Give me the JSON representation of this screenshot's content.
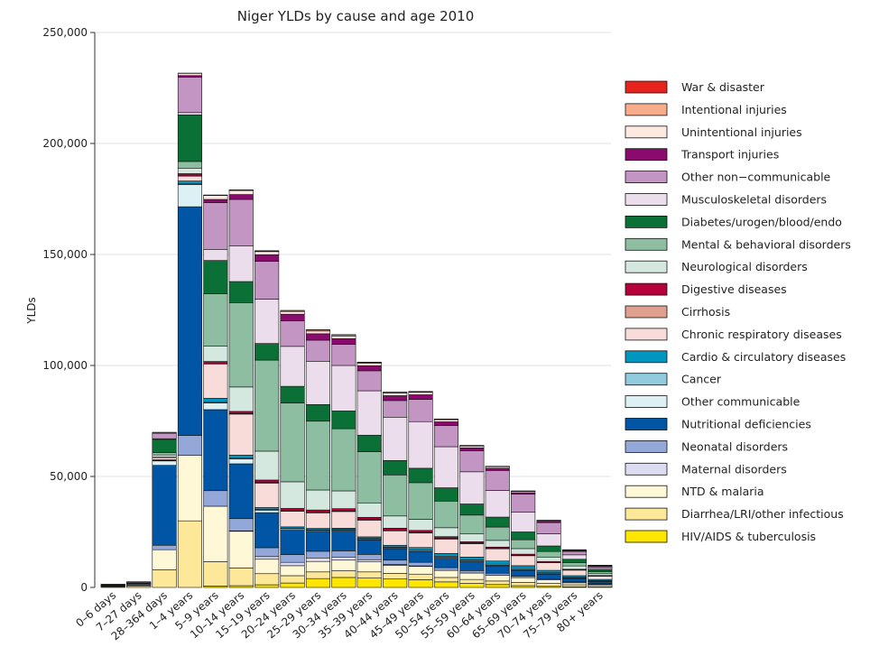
{
  "chart_data": {
    "type": "bar",
    "stacked": true,
    "title": "Niger YLDs by cause and age 2010",
    "xlabel": "",
    "ylabel": "YLDs",
    "ylim": [
      0,
      250000
    ],
    "yticks": [
      0,
      50000,
      100000,
      150000,
      200000,
      250000
    ],
    "ytick_labels": [
      "0",
      "50,000",
      "100,000",
      "150,000",
      "200,000",
      "250,000"
    ],
    "grid": true,
    "legend_position": "right",
    "categories": [
      "0–6 days",
      "7–27 days",
      "28–364 days",
      "1–4 years",
      "5–9 years",
      "10–14 years",
      "15–19 years",
      "20–24 years",
      "25–29 years",
      "30–34 years",
      "35–39 years",
      "40–44 years",
      "45–49 years",
      "50–54 years",
      "55–59 years",
      "60–64 years",
      "65–69 years",
      "70–74 years",
      "75–79 years",
      "80+ years"
    ],
    "series": [
      {
        "name": "HIV/AIDS & tuberculosis",
        "color": "#FFE600",
        "values": [
          0,
          0,
          0,
          0,
          600,
          800,
          1200,
          2000,
          4000,
          4500,
          4200,
          3800,
          3500,
          2500,
          1800,
          1300,
          800,
          500,
          300,
          200
        ]
      },
      {
        "name": "Diarrhea/LRI/other infectious",
        "color": "#FDE89A",
        "values": [
          300,
          600,
          8000,
          30000,
          11000,
          8000,
          5000,
          3300,
          3000,
          3000,
          2800,
          2500,
          2500,
          2000,
          1800,
          1600,
          1500,
          1300,
          900,
          700
        ]
      },
      {
        "name": "NTD & malaria",
        "color": "#FEF8D6",
        "values": [
          200,
          400,
          9000,
          29500,
          25000,
          16500,
          6500,
          4500,
          4700,
          4800,
          4500,
          3700,
          3500,
          3200,
          2900,
          2600,
          2100,
          1600,
          900,
          500
        ]
      },
      {
        "name": "Maternal disorders",
        "color": "#DCDCF0",
        "values": [
          0,
          0,
          0,
          0,
          0,
          200,
          1200,
          1500,
          1600,
          1400,
          1000,
          400,
          200,
          0,
          0,
          0,
          0,
          0,
          0,
          0
        ]
      },
      {
        "name": "Neonatal disorders",
        "color": "#93A8D8",
        "values": [
          300,
          500,
          2000,
          9000,
          7000,
          5500,
          4000,
          3500,
          3000,
          2800,
          2400,
          1900,
          1600,
          1200,
          1100,
          900,
          700,
          500,
          400,
          300
        ]
      },
      {
        "name": "Nutritional deficiencies",
        "color": "#0055A4",
        "values": [
          100,
          200,
          36000,
          103000,
          36500,
          24700,
          15800,
          11000,
          9000,
          8900,
          6500,
          5200,
          4900,
          4300,
          4000,
          3300,
          2600,
          2100,
          1500,
          1000
        ]
      },
      {
        "name": "Other communicable",
        "color": "#DDF0F4",
        "values": [
          100,
          100,
          2000,
          10000,
          3000,
          2200,
          1100,
          600,
          400,
          400,
          400,
          400,
          400,
          400,
          300,
          300,
          300,
          200,
          200,
          100
        ]
      },
      {
        "name": "Cancer",
        "color": "#92CADE",
        "values": [
          0,
          0,
          200,
          300,
          300,
          300,
          300,
          300,
          300,
          300,
          300,
          300,
          400,
          500,
          500,
          500,
          500,
          400,
          300,
          200
        ]
      },
      {
        "name": "Cardio & circulatory diseases",
        "color": "#0096C0",
        "values": [
          0,
          0,
          300,
          1300,
          1800,
          1400,
          900,
          600,
          600,
          600,
          700,
          800,
          1000,
          1200,
          1300,
          1400,
          1300,
          1100,
          800,
          600
        ]
      },
      {
        "name": "Chronic respiratory diseases",
        "color": "#F8DCDA",
        "values": [
          0,
          0,
          1000,
          2200,
          15500,
          18500,
          11000,
          7000,
          7000,
          7500,
          7500,
          6500,
          6500,
          6500,
          6000,
          5500,
          4500,
          3500,
          2500,
          1500
        ]
      },
      {
        "name": "Cirrhosis",
        "color": "#E0A090",
        "values": [
          0,
          0,
          0,
          100,
          100,
          200,
          300,
          300,
          300,
          300,
          300,
          300,
          300,
          300,
          200,
          200,
          200,
          100,
          100,
          100
        ]
      },
      {
        "name": "Digestive diseases",
        "color": "#B5003A",
        "values": [
          0,
          0,
          200,
          1000,
          1000,
          1000,
          1100,
          1000,
          1000,
          1000,
          1000,
          900,
          900,
          800,
          700,
          600,
          500,
          400,
          300,
          200
        ]
      },
      {
        "name": "Neurological disorders",
        "color": "#D5E8DF",
        "values": [
          0,
          0,
          1000,
          2500,
          7000,
          11000,
          13000,
          12000,
          9000,
          8000,
          6500,
          5500,
          5000,
          4000,
          3500,
          3000,
          2500,
          2000,
          1500,
          800
        ]
      },
      {
        "name": "Mental & behavioral disorders",
        "color": "#8DBEA1",
        "values": [
          100,
          200,
          1000,
          3000,
          23500,
          38000,
          41000,
          35500,
          31000,
          28000,
          23000,
          18500,
          16500,
          12000,
          8500,
          6000,
          4000,
          2500,
          1500,
          900
        ]
      },
      {
        "name": "Diabetes/urogen/blood/endo",
        "color": "#0A7035",
        "values": [
          100,
          200,
          6000,
          21000,
          15000,
          9500,
          7500,
          7500,
          7500,
          8000,
          7500,
          6500,
          6500,
          6000,
          5000,
          4500,
          3500,
          2500,
          1500,
          900
        ]
      },
      {
        "name": "Musculoskeletal disorders",
        "color": "#ECDDEC",
        "values": [
          0,
          0,
          300,
          1000,
          5000,
          16000,
          20000,
          18000,
          19500,
          20500,
          20000,
          19500,
          21000,
          18500,
          14500,
          12000,
          9000,
          5500,
          2000,
          600
        ]
      },
      {
        "name": "Other non-communicable",
        "color": "#C295C2",
        "values": [
          300,
          400,
          2500,
          16000,
          21000,
          21000,
          17000,
          11500,
          9500,
          9500,
          9000,
          7500,
          10000,
          9500,
          9500,
          9000,
          8000,
          5000,
          1500,
          800
        ]
      },
      {
        "name": "Transport injuries",
        "color": "#8A0A6E",
        "values": [
          0,
          0,
          100,
          700,
          1500,
          2200,
          3000,
          3000,
          2900,
          2600,
          2300,
          2200,
          2100,
          1700,
          1300,
          1000,
          700,
          500,
          300,
          200
        ]
      },
      {
        "name": "Unintentional injuries",
        "color": "#FDE9E0",
        "values": [
          0,
          0,
          300,
          1000,
          1800,
          1800,
          1400,
          1200,
          1200,
          1200,
          1100,
          1100,
          1100,
          1000,
          800,
          700,
          600,
          400,
          300,
          200
        ]
      },
      {
        "name": "Intentional injuries",
        "color": "#F8AC8A",
        "values": [
          0,
          0,
          0,
          0,
          100,
          200,
          300,
          400,
          500,
          500,
          400,
          400,
          300,
          200,
          200,
          100,
          100,
          100,
          100,
          100
        ]
      },
      {
        "name": "War & disaster",
        "color": "#E8231E",
        "values": [
          0,
          0,
          0,
          100,
          100,
          100,
          100,
          100,
          100,
          100,
          100,
          100,
          100,
          100,
          100,
          100,
          100,
          100,
          100,
          100
        ]
      }
    ],
    "legend_entries": [
      "War & disaster",
      "Intentional injuries",
      "Unintentional injuries",
      "Transport injuries",
      "Other non−communicable",
      "Musculoskeletal disorders",
      "Diabetes/urogen/blood/endo",
      "Mental & behavioral disorders",
      "Neurological disorders",
      "Digestive diseases",
      "Cirrhosis",
      "Chronic respiratory diseases",
      "Cardio & circulatory diseases",
      "Cancer",
      "Other communicable",
      "Nutritional deficiencies",
      "Neonatal disorders",
      "Maternal disorders",
      "NTD & malaria",
      "Diarrhea/LRI/other infectious",
      "HIV/AIDS & tuberculosis"
    ],
    "legend_colors": [
      "#E8231E",
      "#F8AC8A",
      "#FDE9E0",
      "#8A0A6E",
      "#C295C2",
      "#ECDDEC",
      "#0A7035",
      "#8DBEA1",
      "#D5E8DF",
      "#B5003A",
      "#E0A090",
      "#F8DCDA",
      "#0096C0",
      "#92CADE",
      "#DDF0F4",
      "#0055A4",
      "#93A8D8",
      "#DCDCF0",
      "#FEF8D6",
      "#FDE89A",
      "#FFE600"
    ]
  }
}
